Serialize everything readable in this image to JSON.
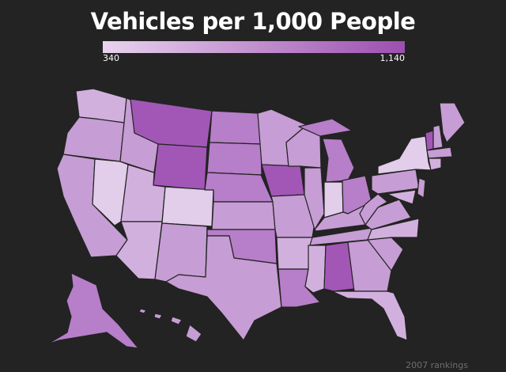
{
  "title": "Vehicles per 1,000 People",
  "legend": {
    "min_label": "340",
    "max_label": "1,140",
    "color_low": "#e8d3ee",
    "color_high": "#9c4fb0"
  },
  "footnote": "2007 rankings",
  "colors": {
    "background": "#232323",
    "lightest": "#e2cdea",
    "light": "#d2b0de",
    "medium": "#c69dd4",
    "dark": "#b77ec9",
    "darkest": "#a257b6"
  }
}
